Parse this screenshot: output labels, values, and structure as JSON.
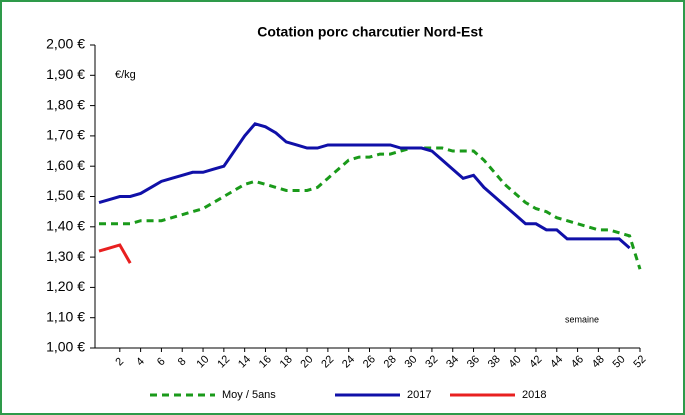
{
  "chart_data": {
    "type": "line",
    "title": "Cotation porc charcutier Nord-Est",
    "y_unit_label": "€/kg",
    "x_axis_label": "semaine",
    "x": [
      0,
      1,
      2,
      3,
      4,
      5,
      6,
      7,
      8,
      9,
      10,
      11,
      12,
      13,
      14,
      15,
      16,
      17,
      18,
      19,
      20,
      21,
      22,
      23,
      24,
      25,
      26,
      27,
      28,
      29,
      30,
      31,
      32,
      33,
      34,
      35,
      36,
      37,
      38,
      39,
      40,
      41,
      42,
      43,
      44,
      45,
      46,
      47,
      48,
      49,
      50,
      51,
      52
    ],
    "xlim": [
      0,
      52
    ],
    "xticks": [
      2,
      4,
      6,
      8,
      10,
      12,
      14,
      16,
      18,
      20,
      22,
      24,
      26,
      28,
      30,
      32,
      34,
      36,
      38,
      40,
      42,
      44,
      46,
      48,
      50,
      52
    ],
    "ylim": [
      1.0,
      2.0
    ],
    "yticks": [
      {
        "value": 1.0,
        "label": "1,00 €"
      },
      {
        "value": 1.1,
        "label": "1,10 €"
      },
      {
        "value": 1.2,
        "label": "1,20 €"
      },
      {
        "value": 1.3,
        "label": "1,30 €"
      },
      {
        "value": 1.4,
        "label": "1,40 €"
      },
      {
        "value": 1.5,
        "label": "1,50 €"
      },
      {
        "value": 1.6,
        "label": "1,60 €"
      },
      {
        "value": 1.7,
        "label": "1,70 €"
      },
      {
        "value": 1.8,
        "label": "1,80 €"
      },
      {
        "value": 1.9,
        "label": "1,90 €"
      },
      {
        "value": 2.0,
        "label": "2,00 €"
      }
    ],
    "grid": false,
    "legend": "bottom",
    "series": [
      {
        "name": "Moy / 5ans",
        "color": "#1a9a1a",
        "dashed": true,
        "values": [
          1.41,
          1.41,
          1.41,
          1.41,
          1.42,
          1.42,
          1.42,
          1.43,
          1.44,
          1.45,
          1.46,
          1.48,
          1.5,
          1.52,
          1.54,
          1.55,
          1.54,
          1.53,
          1.52,
          1.52,
          1.52,
          1.53,
          1.56,
          1.59,
          1.62,
          1.63,
          1.63,
          1.64,
          1.64,
          1.65,
          1.66,
          1.66,
          1.66,
          1.66,
          1.65,
          1.65,
          1.65,
          1.62,
          1.58,
          1.54,
          1.51,
          1.48,
          1.46,
          1.45,
          1.43,
          1.42,
          1.41,
          1.4,
          1.39,
          1.39,
          1.38,
          1.37,
          1.26
        ]
      },
      {
        "name": "2017",
        "color": "#1010a8",
        "dashed": false,
        "values": [
          1.48,
          1.49,
          1.5,
          1.5,
          1.51,
          1.53,
          1.55,
          1.56,
          1.57,
          1.58,
          1.58,
          1.59,
          1.6,
          1.65,
          1.7,
          1.74,
          1.73,
          1.71,
          1.68,
          1.67,
          1.66,
          1.66,
          1.67,
          1.67,
          1.67,
          1.67,
          1.67,
          1.67,
          1.67,
          1.66,
          1.66,
          1.66,
          1.65,
          1.62,
          1.59,
          1.56,
          1.57,
          1.53,
          1.5,
          1.47,
          1.44,
          1.41,
          1.41,
          1.39,
          1.39,
          1.36,
          1.36,
          1.36,
          1.36,
          1.36,
          1.36,
          1.33,
          null
        ]
      },
      {
        "name": "2018",
        "color": "#e82020",
        "dashed": false,
        "values": [
          1.32,
          1.33,
          1.34,
          1.28,
          null,
          null,
          null,
          null,
          null,
          null,
          null,
          null,
          null,
          null,
          null,
          null,
          null,
          null,
          null,
          null,
          null,
          null,
          null,
          null,
          null,
          null,
          null,
          null,
          null,
          null,
          null,
          null,
          null,
          null,
          null,
          null,
          null,
          null,
          null,
          null,
          null,
          null,
          null,
          null,
          null,
          null,
          null,
          null,
          null,
          null,
          null,
          null,
          null
        ]
      }
    ]
  }
}
